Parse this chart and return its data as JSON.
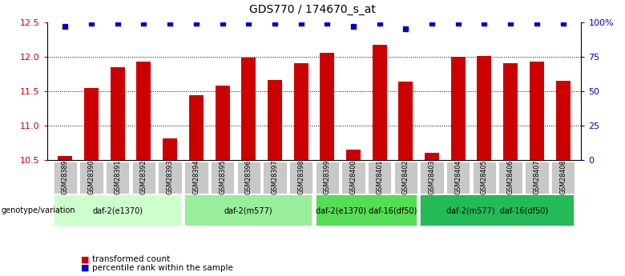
{
  "title": "GDS770 / 174670_s_at",
  "samples": [
    "GSM28389",
    "GSM28390",
    "GSM28391",
    "GSM28392",
    "GSM28393",
    "GSM28394",
    "GSM28395",
    "GSM28396",
    "GSM28397",
    "GSM28398",
    "GSM28399",
    "GSM28400",
    "GSM28401",
    "GSM28402",
    "GSM28403",
    "GSM28404",
    "GSM28405",
    "GSM28406",
    "GSM28407",
    "GSM28408"
  ],
  "bar_values": [
    10.56,
    11.55,
    11.85,
    11.93,
    10.82,
    11.44,
    11.58,
    11.98,
    11.66,
    11.9,
    12.06,
    10.65,
    12.17,
    11.64,
    10.6,
    12.0,
    12.01,
    11.9,
    11.93,
    11.65
  ],
  "percentile_values": [
    97,
    99,
    99,
    99,
    99,
    99,
    99,
    99,
    99,
    99,
    99,
    97,
    99,
    95,
    99,
    99,
    99,
    99,
    99,
    99
  ],
  "bar_color": "#cc0000",
  "dot_color": "#0000cc",
  "ylim_left": [
    10.5,
    12.5
  ],
  "ylim_right": [
    0,
    100
  ],
  "yticks_left": [
    10.5,
    11.0,
    11.5,
    12.0,
    12.5
  ],
  "yticks_right": [
    0,
    25,
    50,
    75,
    100
  ],
  "ytick_labels_right": [
    "0",
    "25",
    "50",
    "75",
    "100%"
  ],
  "grid_values": [
    11.0,
    11.5,
    12.0
  ],
  "groups": [
    {
      "label": "daf-2(e1370)",
      "start": 0,
      "end": 5,
      "color": "#ccffcc"
    },
    {
      "label": "daf-2(m577)",
      "start": 5,
      "end": 10,
      "color": "#99ee99"
    },
    {
      "label": "daf-2(e1370) daf-16(df50)",
      "start": 10,
      "end": 14,
      "color": "#55dd55"
    },
    {
      "label": "daf-2(m577)  daf-16(df50)",
      "start": 14,
      "end": 20,
      "color": "#22bb55"
    }
  ],
  "legend_bar_label": "transformed count",
  "legend_dot_label": "percentile rank within the sample",
  "genotype_label": "genotype/variation",
  "bar_width": 0.55
}
